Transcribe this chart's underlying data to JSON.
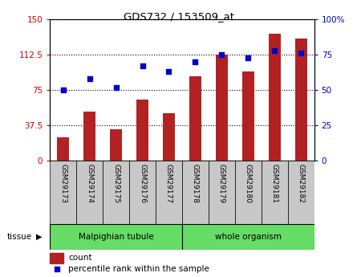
{
  "title": "GDS732 / 153509_at",
  "categories": [
    "GSM29173",
    "GSM29174",
    "GSM29175",
    "GSM29176",
    "GSM29177",
    "GSM29178",
    "GSM29179",
    "GSM29180",
    "GSM29181",
    "GSM29182"
  ],
  "counts": [
    25,
    52,
    33,
    65,
    50,
    90,
    113,
    95,
    135,
    130
  ],
  "percentiles": [
    50,
    58,
    52,
    67,
    63,
    70,
    75,
    73,
    78,
    76
  ],
  "bar_color": "#B22222",
  "dot_color": "#0000CC",
  "ylim_left": [
    0,
    150
  ],
  "ylim_right": [
    0,
    100
  ],
  "yticks_left": [
    0,
    37.5,
    75,
    112.5,
    150
  ],
  "yticks_right": [
    0,
    25,
    50,
    75,
    100
  ],
  "yticklabels_left": [
    "0",
    "37.5",
    "75",
    "112.5",
    "150"
  ],
  "yticklabels_right": [
    "0",
    "25",
    "50",
    "75",
    "100%"
  ],
  "grid_dotted_values": [
    37.5,
    75,
    112.5
  ],
  "tissue_groups": [
    {
      "label": "Malpighian tubule",
      "start": 0,
      "end": 5,
      "color": "#66DD66"
    },
    {
      "label": "whole organism",
      "start": 5,
      "end": 10,
      "color": "#66DD66"
    }
  ],
  "tissue_label": "tissue",
  "legend_count_label": "count",
  "legend_percentile_label": "percentile rank within the sample",
  "left_tick_color": "#CC0000",
  "right_tick_color": "#0000CC",
  "bg_color": "#FFFFFF",
  "tick_area_color": "#C8C8C8"
}
